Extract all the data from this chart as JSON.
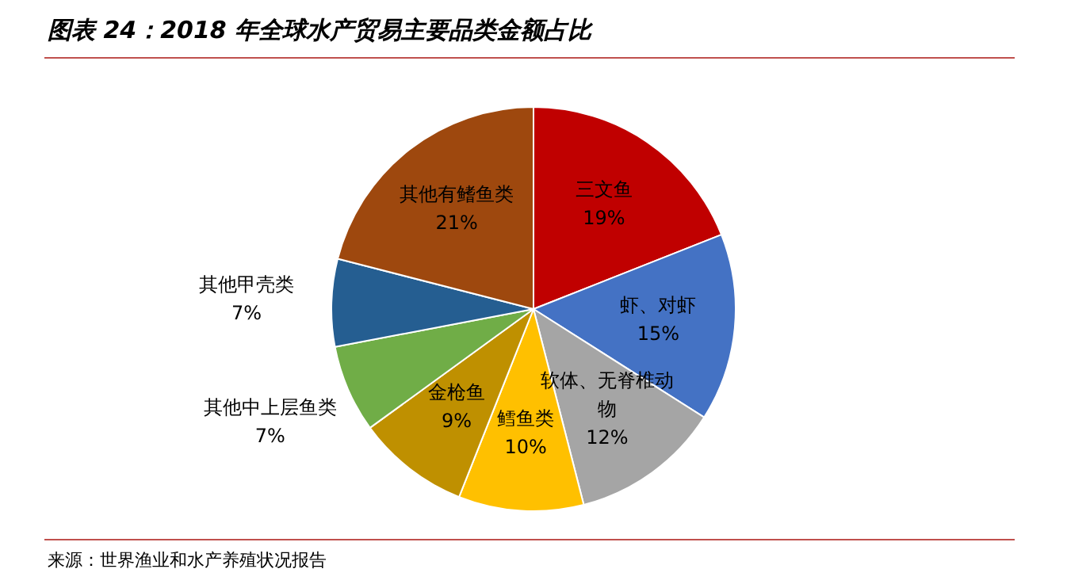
{
  "chart_data": {
    "type": "pie",
    "title": "图表 24：2018 年全球水产贸易主要品类金额占比",
    "categories": [
      "三文鱼",
      "虾、对虾",
      "软体、无脊椎动物",
      "鳕鱼类",
      "金枪鱼",
      "其他中上层鱼类",
      "其他甲壳类",
      "其他有鳍鱼类"
    ],
    "values": [
      19,
      15,
      12,
      10,
      9,
      7,
      7,
      21
    ],
    "colors": [
      "#c00000",
      "#4472c4",
      "#a5a5a5",
      "#ffc000",
      "#bf9000",
      "#70ad47",
      "#255e91",
      "#9e480e"
    ],
    "value_labels": [
      "19%",
      "15%",
      "12%",
      "10%",
      "9%",
      "7%",
      "7%",
      "21%"
    ],
    "annotations": [
      "来源：世界渔业和水产养殖状况报告"
    ],
    "legend": false
  }
}
